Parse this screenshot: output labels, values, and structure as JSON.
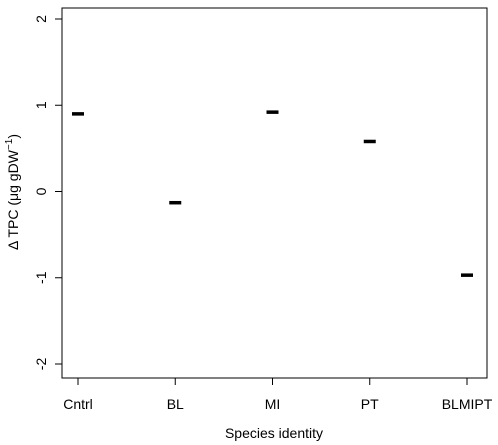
{
  "chart_data": {
    "type": "scatter",
    "marker": "horizontal-dash",
    "title": "",
    "xlabel": "Species identity",
    "ylabel": {
      "delta_symbol": "Δ",
      "main": " TPC (",
      "mu": "μ",
      "unit": "g gDW",
      "superscript": "−1",
      "close": ")"
    },
    "categories": [
      "Cntrl",
      "BL",
      "MI",
      "PT",
      "BLMIPT"
    ],
    "values": [
      0.9,
      -0.13,
      0.92,
      0.58,
      -0.97
    ],
    "ylim": [
      -2.2,
      2.2
    ],
    "yticks": [
      -2,
      -1,
      0,
      1,
      2
    ],
    "ytick_labels": [
      "-2",
      "-1",
      "0",
      "1",
      "2"
    ],
    "grid": false,
    "legend": "none",
    "colors": {
      "marker": "#000000",
      "axis": "#000000",
      "background": "#ffffff"
    }
  }
}
